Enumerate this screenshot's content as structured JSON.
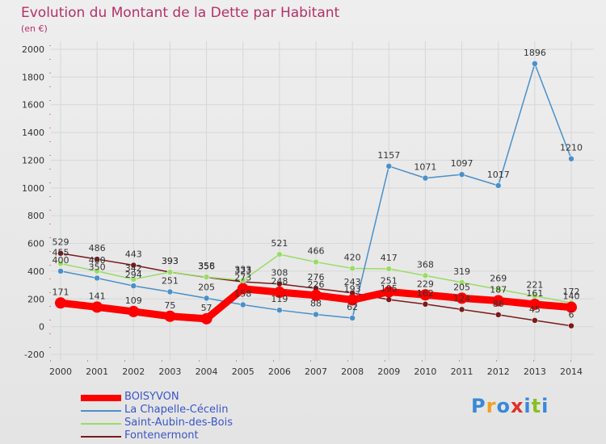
{
  "chart_data": {
    "type": "line",
    "title": "Evolution du Montant de la Dette par Habitant",
    "subtitle": "(en €)",
    "xlabel": "",
    "ylabel": "",
    "ylim": [
      -200,
      2000
    ],
    "yticks": [
      "-200",
      "0",
      "200",
      "400",
      "600",
      "800",
      "1000",
      "1200",
      "1400",
      "1600",
      "1800",
      "2000"
    ],
    "categories": [
      "2000",
      "2001",
      "2002",
      "2003",
      "2004",
      "2005",
      "2006",
      "2007",
      "2008",
      "2009",
      "2010",
      "2011",
      "2012",
      "2013",
      "2014"
    ],
    "grid": true,
    "legend_position": "bottom-left",
    "series": [
      {
        "name": "BOISYVON",
        "color": "#ff0000",
        "values": [
          171,
          141,
          109,
          75,
          57,
          273,
          248,
          226,
          193,
          251,
          229,
          205,
          187,
          161,
          140
        ]
      },
      {
        "name": "La Chapelle-Cécelin",
        "color": "#4a90c9",
        "values": [
          400,
          350,
          294,
          251,
          205,
          158,
          119,
          88,
          62,
          1157,
          1071,
          1097,
          1017,
          1896,
          1210
        ]
      },
      {
        "name": "Saint-Aubin-des-Bois",
        "color": "#99dd66",
        "values": [
          455,
          400,
          342,
          393,
          358,
          333,
          521,
          466,
          420,
          417,
          368,
          319,
          269,
          221,
          172
        ]
      },
      {
        "name": "Fontenermont",
        "color": "#7a1a1a",
        "values": [
          529,
          486,
          443,
          393,
          356,
          323,
          308,
          276,
          243,
          195,
          162,
          124,
          86,
          45,
          6
        ]
      }
    ]
  },
  "brand": {
    "logo_text": "Proxiti"
  }
}
